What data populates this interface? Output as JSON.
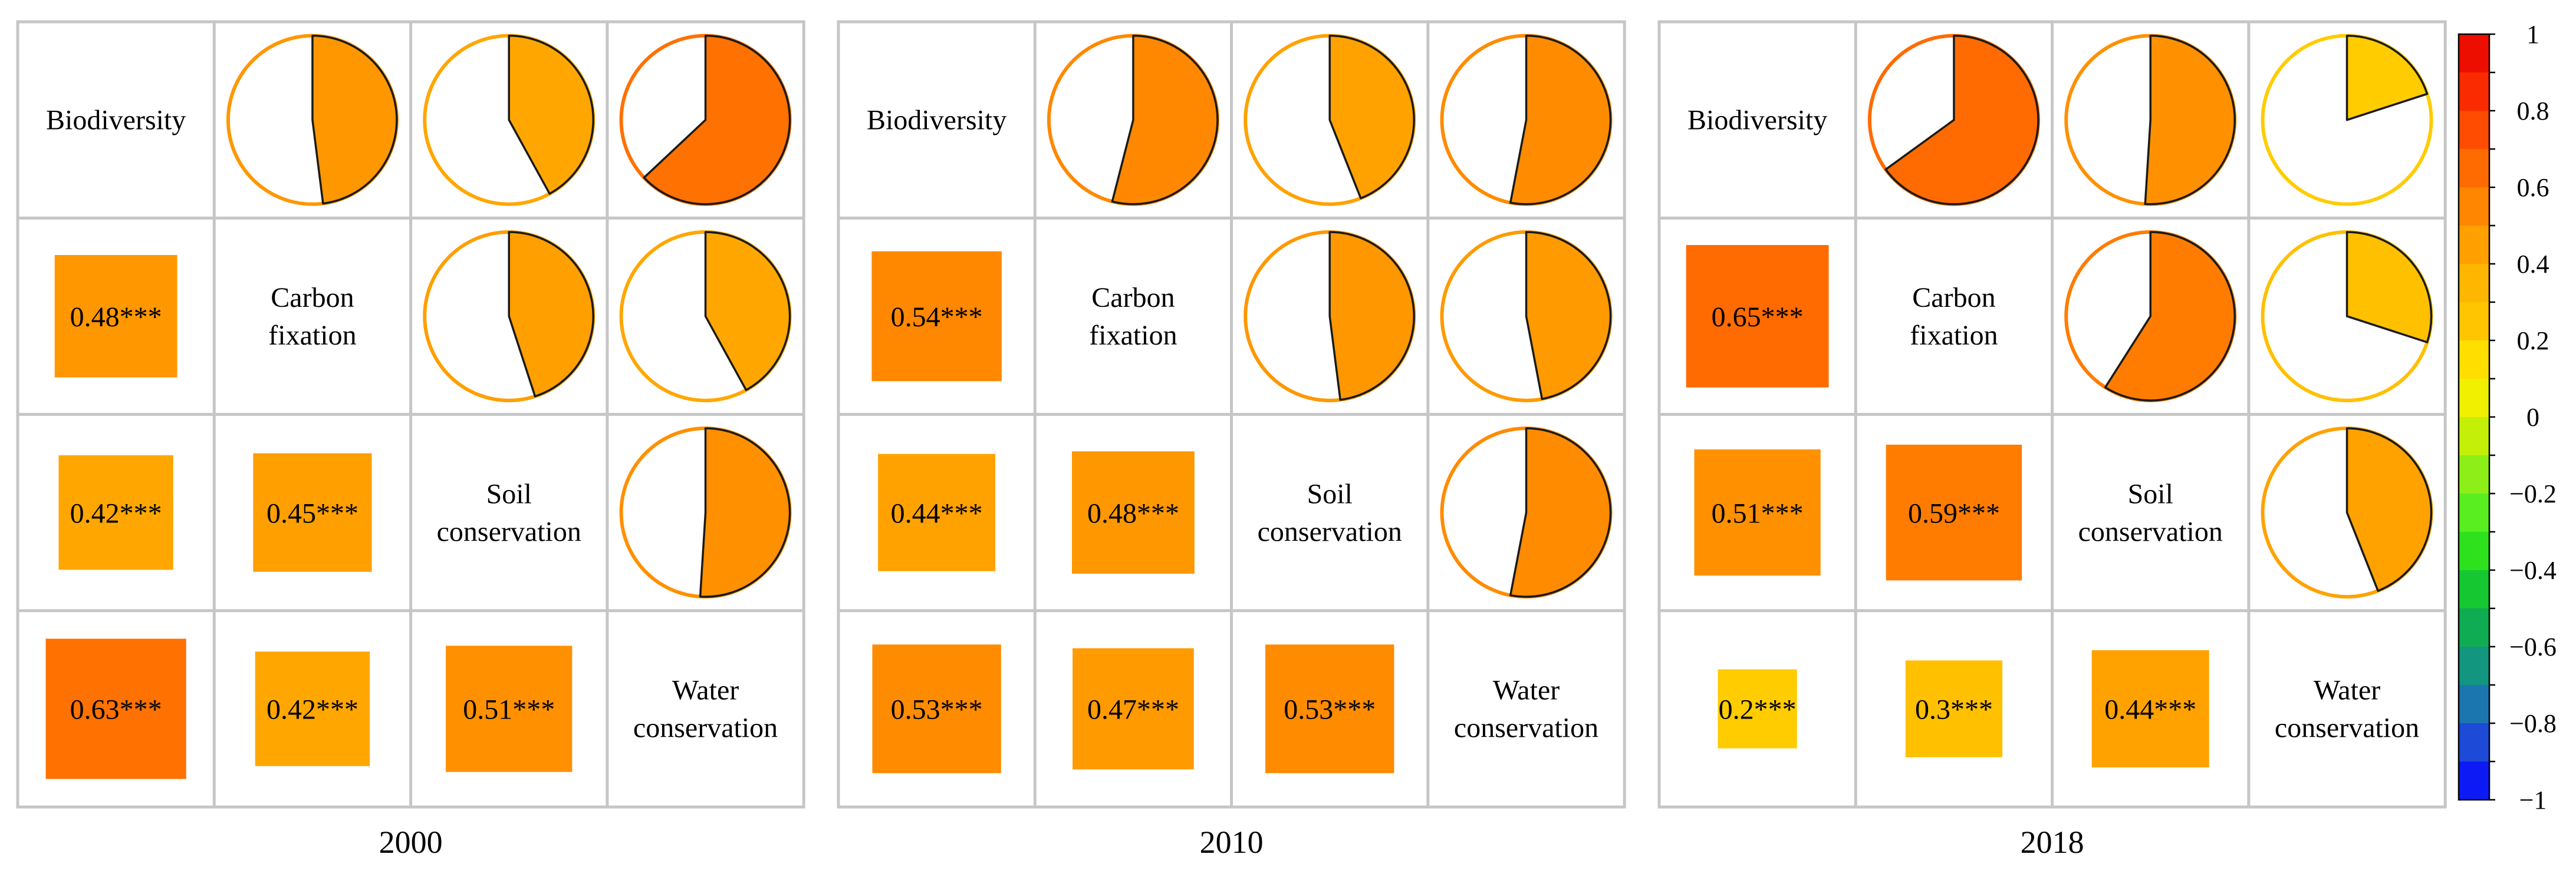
{
  "chart_data": {
    "type": "correlation-matrix",
    "variables": [
      "Biodiversity",
      "Carbon fixation",
      "Soil conservation",
      "Water conservation"
    ],
    "variable_lines": [
      [
        "Biodiversity"
      ],
      [
        "Carbon",
        "fixation"
      ],
      [
        "Soil",
        "conservation"
      ],
      [
        "Water",
        "conservation"
      ]
    ],
    "lower_triangle": "squares sized and colored by coefficient, labeled with value",
    "upper_triangle": "pies filled clockwise from top by coefficient",
    "panels": [
      {
        "year": "2000",
        "pairs": [
          {
            "row": 1,
            "col": 0,
            "value": 0.48,
            "label": "0.48***"
          },
          {
            "row": 2,
            "col": 0,
            "value": 0.42,
            "label": "0.42***"
          },
          {
            "row": 2,
            "col": 1,
            "value": 0.45,
            "label": "0.45***"
          },
          {
            "row": 3,
            "col": 0,
            "value": 0.63,
            "label": "0.63***"
          },
          {
            "row": 3,
            "col": 1,
            "value": 0.42,
            "label": "0.42***"
          },
          {
            "row": 3,
            "col": 2,
            "value": 0.51,
            "label": "0.51***"
          }
        ]
      },
      {
        "year": "2010",
        "pairs": [
          {
            "row": 1,
            "col": 0,
            "value": 0.54,
            "label": "0.54***"
          },
          {
            "row": 2,
            "col": 0,
            "value": 0.44,
            "label": "0.44***"
          },
          {
            "row": 2,
            "col": 1,
            "value": 0.48,
            "label": "0.48***"
          },
          {
            "row": 3,
            "col": 0,
            "value": 0.53,
            "label": "0.53***"
          },
          {
            "row": 3,
            "col": 1,
            "value": 0.47,
            "label": "0.47***"
          },
          {
            "row": 3,
            "col": 2,
            "value": 0.53,
            "label": "0.53***"
          }
        ]
      },
      {
        "year": "2018",
        "pairs": [
          {
            "row": 1,
            "col": 0,
            "value": 0.65,
            "label": "0.65***"
          },
          {
            "row": 2,
            "col": 0,
            "value": 0.51,
            "label": "0.51***"
          },
          {
            "row": 2,
            "col": 1,
            "value": 0.59,
            "label": "0.59***"
          },
          {
            "row": 3,
            "col": 0,
            "value": 0.2,
            "label": "0.2***"
          },
          {
            "row": 3,
            "col": 1,
            "value": 0.3,
            "label": "0.3***"
          },
          {
            "row": 3,
            "col": 2,
            "value": 0.44,
            "label": "0.44***"
          }
        ]
      }
    ],
    "colorbar": {
      "range": [
        -1,
        1
      ],
      "tick_values": [
        1,
        0.8,
        0.6,
        0.4,
        0.2,
        0,
        -0.2,
        -0.4,
        -0.6,
        -0.8,
        -1
      ],
      "tick_labels": [
        "1",
        "0.8",
        "0.6",
        "0.4",
        "0.2",
        "0",
        "−0.2",
        "−0.4",
        "−0.6",
        "−0.8",
        "−1"
      ],
      "color_stops": [
        {
          "value": -1.0,
          "color": "#0000ff"
        },
        {
          "value": -0.9,
          "color": "#1b34ec"
        },
        {
          "value": -0.8,
          "color": "#2060c0"
        },
        {
          "value": -0.7,
          "color": "#168ca0"
        },
        {
          "value": -0.6,
          "color": "#10a060"
        },
        {
          "value": -0.5,
          "color": "#10b848"
        },
        {
          "value": -0.4,
          "color": "#1ad81a"
        },
        {
          "value": -0.3,
          "color": "#40ec20"
        },
        {
          "value": -0.2,
          "color": "#70f020"
        },
        {
          "value": -0.1,
          "color": "#a8f010"
        },
        {
          "value": 0.0,
          "color": "#e0f000"
        },
        {
          "value": 0.1,
          "color": "#fff000"
        },
        {
          "value": 0.2,
          "color": "#ffcc00"
        },
        {
          "value": 0.3,
          "color": "#ffc000"
        },
        {
          "value": 0.4,
          "color": "#ffac00"
        },
        {
          "value": 0.5,
          "color": "#ff9200"
        },
        {
          "value": 0.6,
          "color": "#ff7a00"
        },
        {
          "value": 0.7,
          "color": "#ff5c00"
        },
        {
          "value": 0.8,
          "color": "#ff3c00"
        },
        {
          "value": 0.9,
          "color": "#f51b00"
        },
        {
          "value": 1.0,
          "color": "#e60000"
        }
      ]
    }
  },
  "colors": {
    "grid": "#c6c6c6",
    "pie_outline": "#1a1a1a",
    "background": "#ffffff"
  }
}
